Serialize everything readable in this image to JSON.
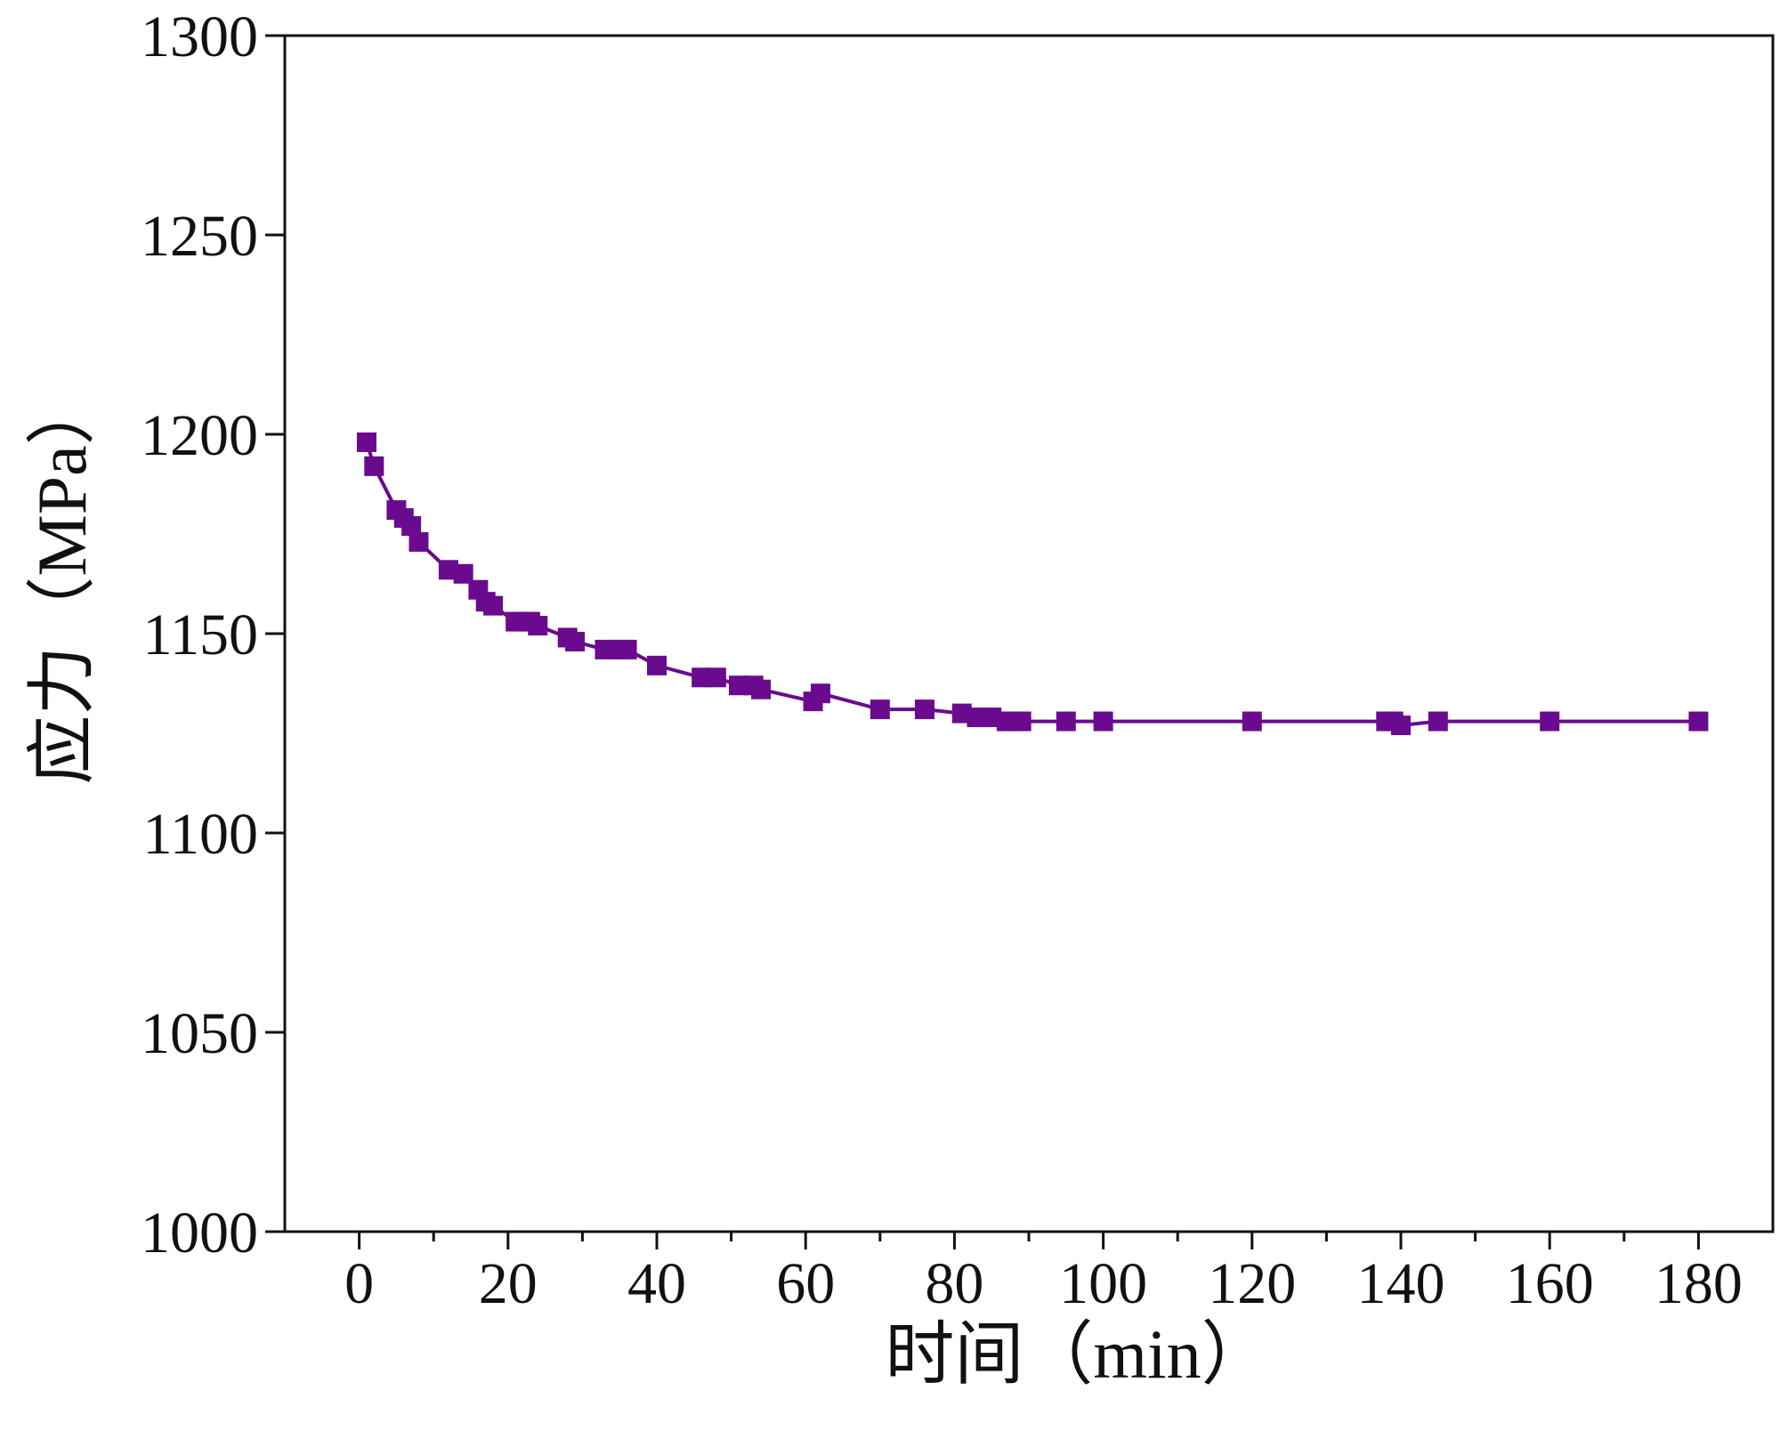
{
  "chart_data": {
    "type": "line",
    "xlabel": "时间（min）",
    "ylabel": "应力（MPa）",
    "xlim": [
      -10,
      190
    ],
    "ylim": [
      1000,
      1300
    ],
    "x_ticks": [
      0,
      20,
      40,
      60,
      80,
      100,
      120,
      140,
      160,
      180
    ],
    "y_ticks": [
      1000,
      1050,
      1100,
      1150,
      1200,
      1250,
      1300
    ],
    "x_minor_step": 10,
    "grid": false,
    "legend": false,
    "marker": "square",
    "color": "#6a0a8e",
    "series": [
      {
        "x": [
          1,
          2,
          5,
          6,
          7,
          8,
          12,
          14,
          16,
          17,
          18,
          21,
          22,
          23,
          24,
          28,
          29,
          33,
          35,
          36,
          40,
          46,
          48,
          51,
          53,
          54,
          61,
          62,
          70,
          76,
          81,
          83,
          85,
          87,
          88,
          89,
          95,
          100,
          120,
          138,
          139,
          140,
          145,
          160,
          180
        ],
        "y": [
          1198,
          1192,
          1181,
          1179,
          1177,
          1173,
          1166,
          1165,
          1161,
          1158,
          1157,
          1153,
          1153,
          1153,
          1152,
          1149,
          1148,
          1146,
          1146,
          1146,
          1142,
          1139,
          1139,
          1137,
          1137,
          1136,
          1133,
          1135,
          1131,
          1131,
          1130,
          1129,
          1129,
          1128,
          1128,
          1128,
          1128,
          1128,
          1128,
          1128,
          1128,
          1127,
          1128,
          1128,
          1128
        ]
      }
    ]
  }
}
